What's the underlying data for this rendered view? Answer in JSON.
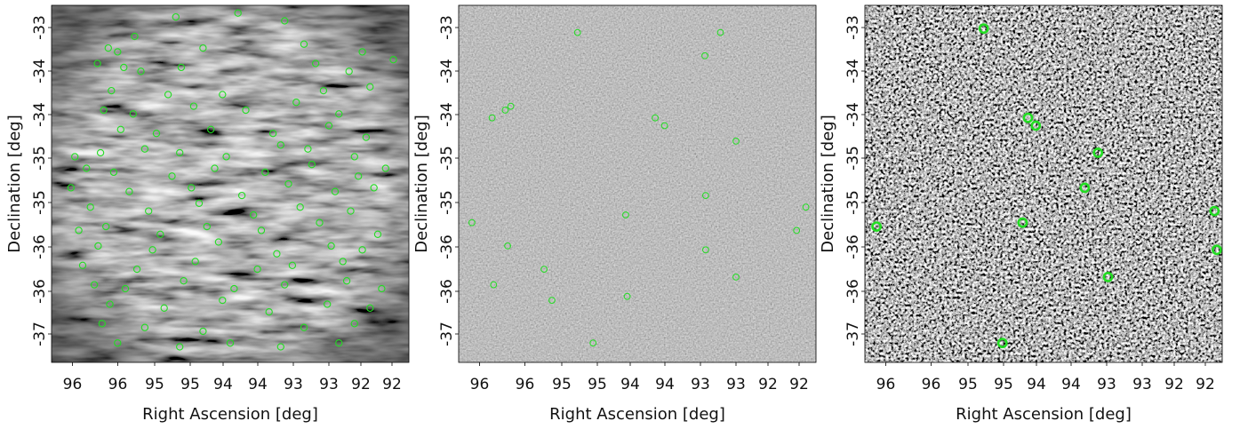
{
  "chart_data": [
    {
      "type": "scatter",
      "title": "",
      "xlabel": "Right Ascension [deg]",
      "ylabel": "Declination [deg]",
      "x_tick_labels": [
        "96",
        "96",
        "95",
        "95",
        "94",
        "94",
        "93",
        "93",
        "92",
        "92"
      ],
      "y_tick_labels": [
        "-33",
        "-34",
        "-34",
        "-35",
        "-35",
        "-36",
        "-36",
        "-37"
      ],
      "background": "grayscale radio image with strong sidelobe artefacts",
      "marker_color": "#22dd22",
      "marker_style": "thin circles",
      "series": [
        {
          "x": [
            94.95,
            94.15,
            93.55,
            95.48,
            95.82,
            95.7,
            94.6,
            93.3,
            92.55,
            92.15,
            95.96,
            95.62,
            95.4,
            94.88,
            93.15,
            92.72,
            95.78,
            95.05,
            94.35,
            93.05,
            92.45,
            95.88,
            95.5,
            94.72,
            94.05,
            93.4,
            92.85,
            95.66,
            95.2,
            94.5,
            93.7,
            92.98,
            92.5,
            96.25,
            95.92,
            95.35,
            94.9,
            94.3,
            93.6,
            93.25,
            92.65,
            96.1,
            95.75,
            95.0,
            94.45,
            93.8,
            93.2,
            92.6,
            92.25,
            96.3,
            95.55,
            94.75,
            94.1,
            93.5,
            92.9,
            92.4,
            96.05,
            95.3,
            94.65,
            93.95,
            93.35,
            92.7,
            96.2,
            95.85,
            95.15,
            94.55,
            93.85,
            93.1,
            92.35,
            95.95,
            95.25,
            94.4,
            93.65,
            92.95,
            92.55,
            96.15,
            95.45,
            94.7,
            93.9,
            93.45,
            92.8,
            96.0,
            95.6,
            94.85,
            94.2,
            93.55,
            92.75,
            92.3,
            95.8,
            95.1,
            94.35,
            93.75,
            93.0,
            92.45,
            95.9,
            95.35,
            94.6,
            93.3,
            92.65,
            95.7,
            94.9,
            94.25,
            93.6,
            92.85
          ],
          "y": [
            -32.9,
            -32.85,
            -32.95,
            -33.15,
            -33.3,
            -33.35,
            -33.3,
            -33.25,
            -33.35,
            -33.45,
            -33.5,
            -33.55,
            -33.6,
            -33.55,
            -33.5,
            -33.6,
            -33.85,
            -33.9,
            -33.9,
            -33.85,
            -33.8,
            -34.1,
            -34.15,
            -34.05,
            -34.1,
            -34.0,
            -34.15,
            -34.35,
            -34.4,
            -34.35,
            -34.4,
            -34.3,
            -34.45,
            -34.7,
            -34.65,
            -34.6,
            -34.65,
            -34.7,
            -34.55,
            -34.6,
            -34.7,
            -34.85,
            -34.9,
            -34.95,
            -34.85,
            -34.9,
            -34.8,
            -34.95,
            -34.85,
            -35.1,
            -35.15,
            -35.1,
            -35.2,
            -35.05,
            -35.15,
            -35.1,
            -35.35,
            -35.4,
            -35.3,
            -35.45,
            -35.35,
            -35.4,
            -35.65,
            -35.6,
            -35.7,
            -35.6,
            -35.65,
            -35.55,
            -35.7,
            -35.85,
            -35.9,
            -35.8,
            -35.95,
            -35.85,
            -35.9,
            -36.1,
            -36.15,
            -36.05,
            -36.15,
            -36.1,
            -36.05,
            -36.35,
            -36.4,
            -36.3,
            -36.4,
            -36.35,
            -36.3,
            -36.4,
            -36.6,
            -36.65,
            -36.55,
            -36.7,
            -36.6,
            -36.65,
            -36.85,
            -36.9,
            -36.95,
            -36.9,
            -36.85,
            -37.1,
            -37.15,
            -37.1,
            -37.15,
            -37.1
          ]
        }
      ]
    },
    {
      "type": "scatter",
      "title": "",
      "xlabel": "Right Ascension [deg]",
      "ylabel": "Declination [deg]",
      "x_tick_labels": [
        "96",
        "96",
        "95",
        "95",
        "94",
        "94",
        "93",
        "93",
        "92",
        "92"
      ],
      "y_tick_labels": [
        "-33",
        "-34",
        "-34",
        "-35",
        "-35",
        "-36",
        "-36",
        "-37"
      ],
      "background": "grayscale noise image",
      "marker_color": "#22dd22",
      "marker_style": "thin circles",
      "series": [
        {
          "x": [
            95.02,
            93.38,
            93.18,
            96.12,
            95.95,
            95.88,
            94.02,
            93.9,
            92.98,
            96.38,
            94.4,
            93.37,
            92.08,
            92.2,
            95.92,
            95.45,
            96.1,
            95.35,
            94.38,
            93.37,
            92.98,
            94.82
          ],
          "y": [
            -33.1,
            -33.4,
            -33.1,
            -34.2,
            -34.1,
            -34.05,
            -34.2,
            -34.3,
            -34.5,
            -35.55,
            -35.45,
            -35.2,
            -35.35,
            -35.65,
            -35.85,
            -36.15,
            -36.35,
            -36.55,
            -36.5,
            -35.9,
            -36.25,
            -37.1
          ]
        }
      ]
    },
    {
      "type": "scatter",
      "title": "",
      "xlabel": "Right Ascension [deg]",
      "ylabel": "Declination [deg]",
      "x_tick_labels": [
        "96",
        "96",
        "95",
        "95",
        "94",
        "94",
        "93",
        "93",
        "92",
        "92"
      ],
      "y_tick_labels": [
        "-33",
        "-34",
        "-34",
        "-35",
        "-35",
        "-36",
        "-36",
        "-37"
      ],
      "background": "high-contrast black/white noise image",
      "marker_color": "#22dd22",
      "marker_style": "thick circles",
      "series": [
        {
          "x": [
            95.02,
            94.45,
            94.35,
            93.55,
            93.72,
            94.52,
            92.05,
            96.4,
            92.02,
            93.42,
            94.78
          ],
          "y": [
            -33.05,
            -34.2,
            -34.3,
            -34.65,
            -35.1,
            -35.55,
            -35.4,
            -35.6,
            -35.9,
            -36.25,
            -37.1
          ]
        }
      ]
    }
  ]
}
